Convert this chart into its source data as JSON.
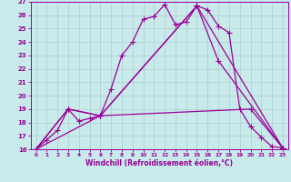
{
  "bg_color": "#c8eaea",
  "line_color": "#990099",
  "grid_color": "#aacccc",
  "xlabel": "Windchill (Refroidissement éolien,°C)",
  "xlim": [
    -0.5,
    23.5
  ],
  "ylim": [
    16,
    27
  ],
  "yticks": [
    16,
    17,
    18,
    19,
    20,
    21,
    22,
    23,
    24,
    25,
    26,
    27
  ],
  "xticks": [
    0,
    1,
    2,
    3,
    4,
    5,
    6,
    7,
    8,
    9,
    10,
    11,
    12,
    13,
    14,
    15,
    16,
    17,
    18,
    19,
    20,
    21,
    22,
    23
  ],
  "line1_x": [
    0,
    1,
    2,
    3,
    4,
    5,
    6,
    7,
    8,
    9,
    10,
    11,
    12,
    13,
    14,
    15,
    16,
    17,
    18,
    19,
    20,
    21,
    22,
    23
  ],
  "line1_y": [
    16.0,
    16.7,
    17.4,
    19.0,
    18.1,
    18.3,
    18.5,
    20.5,
    23.0,
    24.0,
    25.7,
    25.9,
    26.8,
    25.3,
    25.5,
    26.7,
    26.4,
    25.2,
    24.7,
    19.0,
    17.7,
    16.9,
    16.2,
    16.1
  ],
  "line2_x": [
    0,
    3,
    6,
    20,
    23
  ],
  "line2_y": [
    16.0,
    19.0,
    18.5,
    19.0,
    16.1
  ],
  "line3_x": [
    0,
    3,
    6,
    15,
    23
  ],
  "line3_y": [
    16.0,
    19.0,
    18.5,
    26.7,
    16.1
  ],
  "line4_x": [
    0,
    6,
    15,
    17,
    23
  ],
  "line4_y": [
    16.0,
    18.5,
    26.7,
    22.6,
    16.1
  ],
  "marker": "+",
  "markersize": 4,
  "linewidth": 0.9
}
